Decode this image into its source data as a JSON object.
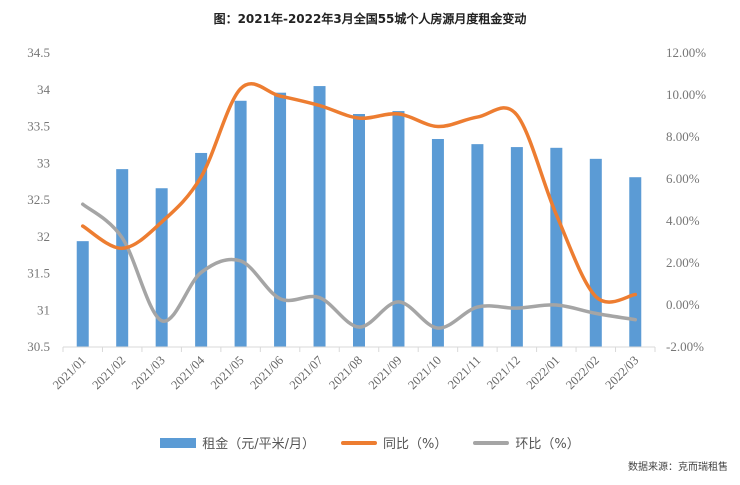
{
  "chart_data": {
    "type": "bar",
    "title": "图：2021年-2022年3月全国55城个人房源月度租金变动",
    "categories": [
      "2021/01",
      "2021/02",
      "2021/03",
      "2021/04",
      "2021/05",
      "2021/06",
      "2021/07",
      "2021/08",
      "2021/09",
      "2021/10",
      "2021/11",
      "2021/12",
      "2022/01",
      "2022/02",
      "2022/03"
    ],
    "series": [
      {
        "name": "租金（元/平米/月）",
        "type": "bar",
        "axis": "left",
        "color": "#5b9bd5",
        "values": [
          31.94,
          32.92,
          32.66,
          33.14,
          33.85,
          33.96,
          34.05,
          33.67,
          33.71,
          33.33,
          33.26,
          33.22,
          33.21,
          33.06,
          32.81
        ]
      },
      {
        "name": "同比（%）",
        "type": "line",
        "axis": "right",
        "color": "#ed7d31",
        "values": [
          3.76,
          2.7,
          3.95,
          6.1,
          10.3,
          9.95,
          9.5,
          8.9,
          9.1,
          8.5,
          8.95,
          9.05,
          4.3,
          0.4,
          0.5
        ]
      },
      {
        "name": "环比（%）",
        "type": "line",
        "axis": "right",
        "color": "#a5a5a5",
        "values": [
          4.8,
          3.2,
          -0.75,
          1.55,
          2.1,
          0.3,
          0.35,
          -1.05,
          0.15,
          -1.1,
          -0.1,
          -0.15,
          0.0,
          -0.4,
          -0.7
        ]
      }
    ],
    "left_axis": {
      "ylim": [
        30.5,
        34.5
      ],
      "ticks": [
        "34.5",
        "34",
        "33.5",
        "33",
        "32.5",
        "32",
        "31.5",
        "31",
        "30.5"
      ]
    },
    "right_axis": {
      "ylim": [
        -2,
        12
      ],
      "ticks": [
        "12.00%",
        "10.00%",
        "8.00%",
        "6.00%",
        "4.00%",
        "2.00%",
        "0.00%",
        "-2.00%"
      ]
    },
    "legend_position": "bottom",
    "grid": false
  },
  "source": "数据来源：克而瑞租售"
}
